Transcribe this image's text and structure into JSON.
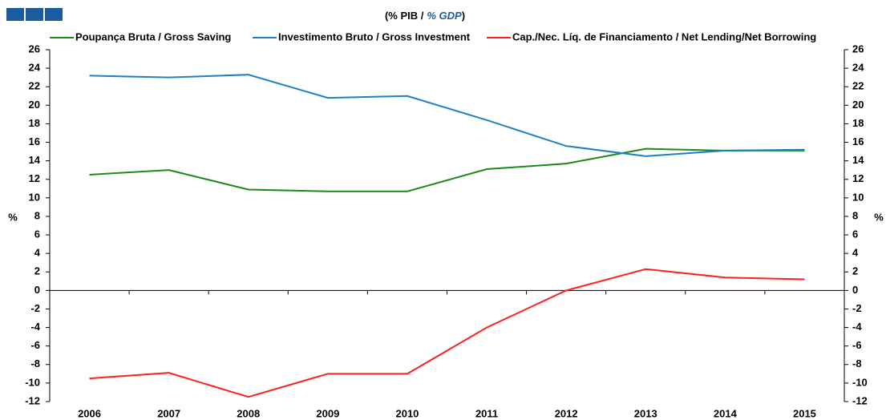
{
  "chart_data": {
    "type": "line",
    "title_parts": [
      "(% PIB /",
      "% GDP",
      ")"
    ],
    "ylabel": "%",
    "y2label": "%",
    "categories": [
      "2006",
      "2007",
      "2008",
      "2009",
      "2010",
      "2011",
      "2012",
      "2013",
      "2014",
      "2015"
    ],
    "series": [
      {
        "name": "Poupança Bruta / Gross Saving",
        "color": "#1a8a1a",
        "values": [
          12.5,
          13.0,
          10.9,
          10.7,
          10.7,
          13.1,
          13.7,
          15.3,
          15.1,
          15.1
        ]
      },
      {
        "name": "Investimento Bruto / Gross Investment",
        "color": "#1f7fc4",
        "values": [
          23.2,
          23.0,
          23.3,
          20.8,
          21.0,
          18.4,
          15.6,
          14.5,
          15.1,
          15.2
        ]
      },
      {
        "name": "Cap./Nec. Líq. de Financiamento / Net Lending/Net Borrowing",
        "color": "#ff2020",
        "values": [
          -9.5,
          -8.9,
          -11.5,
          -9.0,
          -9.0,
          -4.0,
          0.0,
          2.3,
          1.4,
          1.2
        ]
      }
    ],
    "ylim": [
      -12,
      26
    ],
    "yticks": [
      -12,
      -10,
      -8,
      -6,
      -4,
      -2,
      0,
      2,
      4,
      6,
      8,
      10,
      12,
      14,
      16,
      18,
      20,
      22,
      24,
      26
    ],
    "y2lim": [
      -12,
      26
    ],
    "y2ticks": [
      -12,
      -10,
      -8,
      -6,
      -4,
      -2,
      0,
      2,
      4,
      6,
      8,
      10,
      12,
      14,
      16,
      18,
      20,
      22,
      24,
      26
    ],
    "legend": "top"
  }
}
